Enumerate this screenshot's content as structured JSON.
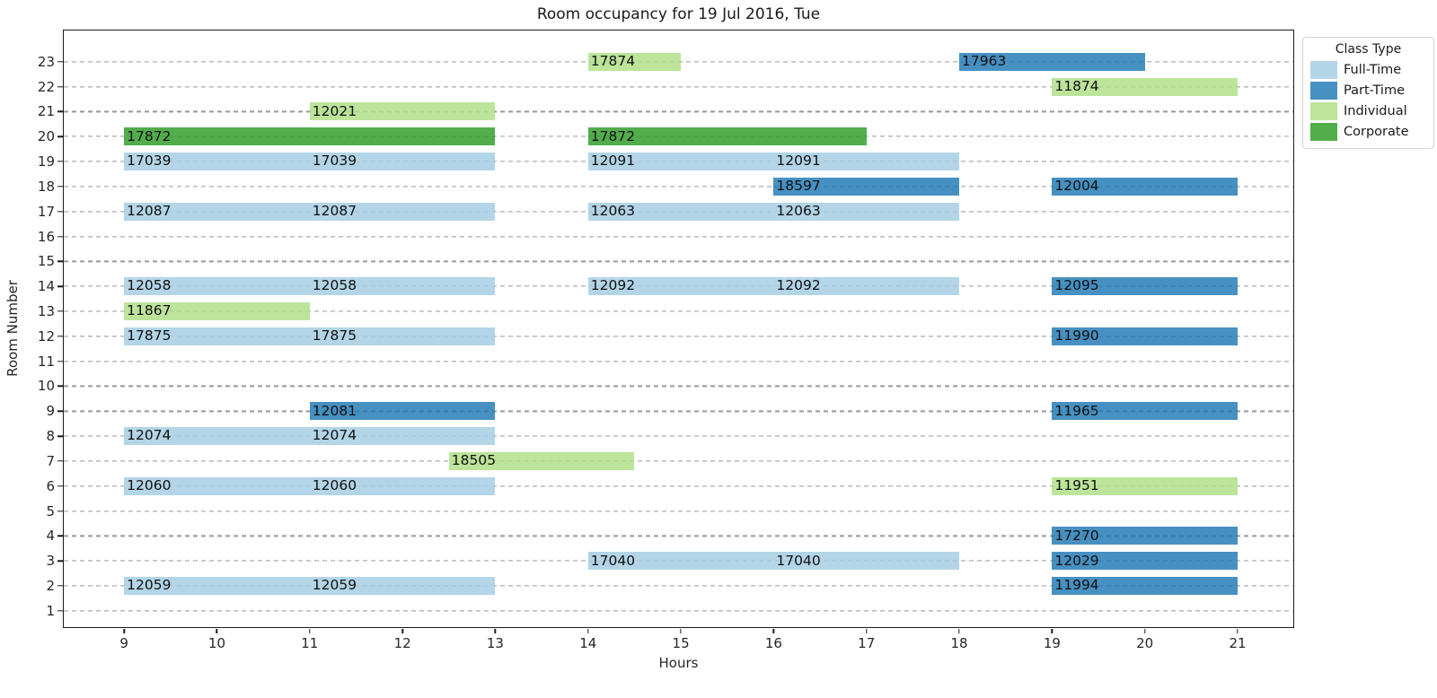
{
  "chart_data": {
    "type": "bar",
    "subtype": "horizontal-gantt-schedule",
    "title": "Room occupancy for 19 Jul 2016, Tue",
    "xlabel": "Hours",
    "ylabel": "Room Number",
    "xlim": [
      8.35,
      21.6
    ],
    "ylim": [
      0.35,
      24.25
    ],
    "x_ticks": [
      9,
      10,
      11,
      12,
      13,
      14,
      15,
      16,
      17,
      18,
      19,
      20,
      21
    ],
    "y_ticks": [
      1,
      2,
      3,
      4,
      5,
      6,
      7,
      8,
      9,
      10,
      11,
      12,
      13,
      14,
      15,
      16,
      17,
      18,
      19,
      20,
      21,
      22,
      23
    ],
    "grid": "horizontal-dashed",
    "legend": {
      "title": "Class Type",
      "position": "outside-top-right",
      "entries": [
        {
          "label": "Full-Time",
          "class": "Full-Time"
        },
        {
          "label": "Part-Time",
          "class": "Part-Time"
        },
        {
          "label": "Individual",
          "class": "Individual"
        },
        {
          "label": "Corporate",
          "class": "Corporate"
        }
      ]
    },
    "class_colors": {
      "Full-Time": "rgba(166,206,227,0.85)",
      "Part-Time": "rgba(31,120,180,0.82)",
      "Individual": "rgba(178,223,138,0.85)",
      "Corporate": "rgba(51,160,44,0.85)"
    },
    "bars": [
      {
        "room": 23,
        "start": 14,
        "end": 15,
        "label": "17874",
        "class": "Individual"
      },
      {
        "room": 23,
        "start": 18,
        "end": 20,
        "label": "17963",
        "class": "Part-Time"
      },
      {
        "room": 22,
        "start": 19,
        "end": 21,
        "label": "11874",
        "class": "Individual"
      },
      {
        "room": 21,
        "start": 11,
        "end": 13,
        "label": "12021",
        "class": "Individual"
      },
      {
        "room": 20,
        "start": 9,
        "end": 13,
        "label": "17872",
        "class": "Corporate"
      },
      {
        "room": 20,
        "start": 14,
        "end": 17,
        "label": "17872",
        "class": "Corporate"
      },
      {
        "room": 19,
        "start": 9,
        "end": 11,
        "label": "17039",
        "class": "Full-Time"
      },
      {
        "room": 19,
        "start": 11,
        "end": 13,
        "label": "17039",
        "class": "Full-Time"
      },
      {
        "room": 19,
        "start": 14,
        "end": 16,
        "label": "12091",
        "class": "Full-Time"
      },
      {
        "room": 19,
        "start": 16,
        "end": 18,
        "label": "12091",
        "class": "Full-Time"
      },
      {
        "room": 18,
        "start": 16,
        "end": 18,
        "label": "18597",
        "class": "Part-Time"
      },
      {
        "room": 18,
        "start": 19,
        "end": 21,
        "label": "12004",
        "class": "Part-Time"
      },
      {
        "room": 17,
        "start": 9,
        "end": 11,
        "label": "12087",
        "class": "Full-Time"
      },
      {
        "room": 17,
        "start": 11,
        "end": 13,
        "label": "12087",
        "class": "Full-Time"
      },
      {
        "room": 17,
        "start": 14,
        "end": 16,
        "label": "12063",
        "class": "Full-Time"
      },
      {
        "room": 17,
        "start": 16,
        "end": 18,
        "label": "12063",
        "class": "Full-Time"
      },
      {
        "room": 14,
        "start": 9,
        "end": 11,
        "label": "12058",
        "class": "Full-Time"
      },
      {
        "room": 14,
        "start": 11,
        "end": 13,
        "label": "12058",
        "class": "Full-Time"
      },
      {
        "room": 14,
        "start": 14,
        "end": 16,
        "label": "12092",
        "class": "Full-Time"
      },
      {
        "room": 14,
        "start": 16,
        "end": 18,
        "label": "12092",
        "class": "Full-Time"
      },
      {
        "room": 14,
        "start": 19,
        "end": 21,
        "label": "12095",
        "class": "Part-Time"
      },
      {
        "room": 13,
        "start": 9,
        "end": 11,
        "label": "11867",
        "class": "Individual"
      },
      {
        "room": 12,
        "start": 9,
        "end": 11,
        "label": "17875",
        "class": "Full-Time"
      },
      {
        "room": 12,
        "start": 11,
        "end": 13,
        "label": "17875",
        "class": "Full-Time"
      },
      {
        "room": 12,
        "start": 19,
        "end": 21,
        "label": "11990",
        "class": "Part-Time"
      },
      {
        "room": 9,
        "start": 11,
        "end": 13,
        "label": "12081",
        "class": "Part-Time"
      },
      {
        "room": 9,
        "start": 19,
        "end": 21,
        "label": "11965",
        "class": "Part-Time"
      },
      {
        "room": 8,
        "start": 9,
        "end": 11,
        "label": "12074",
        "class": "Full-Time"
      },
      {
        "room": 8,
        "start": 11,
        "end": 13,
        "label": "12074",
        "class": "Full-Time"
      },
      {
        "room": 7,
        "start": 12.5,
        "end": 14.5,
        "label": "18505",
        "class": "Individual"
      },
      {
        "room": 6,
        "start": 9,
        "end": 11,
        "label": "12060",
        "class": "Full-Time"
      },
      {
        "room": 6,
        "start": 11,
        "end": 13,
        "label": "12060",
        "class": "Full-Time"
      },
      {
        "room": 6,
        "start": 19,
        "end": 21,
        "label": "11951",
        "class": "Individual"
      },
      {
        "room": 4,
        "start": 19,
        "end": 21,
        "label": "17270",
        "class": "Part-Time"
      },
      {
        "room": 3,
        "start": 14,
        "end": 16,
        "label": "17040",
        "class": "Full-Time"
      },
      {
        "room": 3,
        "start": 16,
        "end": 18,
        "label": "17040",
        "class": "Full-Time"
      },
      {
        "room": 3,
        "start": 19,
        "end": 21,
        "label": "12029",
        "class": "Part-Time"
      },
      {
        "room": 2,
        "start": 9,
        "end": 11,
        "label": "12059",
        "class": "Full-Time"
      },
      {
        "room": 2,
        "start": 11,
        "end": 13,
        "label": "12059",
        "class": "Full-Time"
      },
      {
        "room": 2,
        "start": 19,
        "end": 21,
        "label": "11994",
        "class": "Part-Time"
      }
    ]
  }
}
